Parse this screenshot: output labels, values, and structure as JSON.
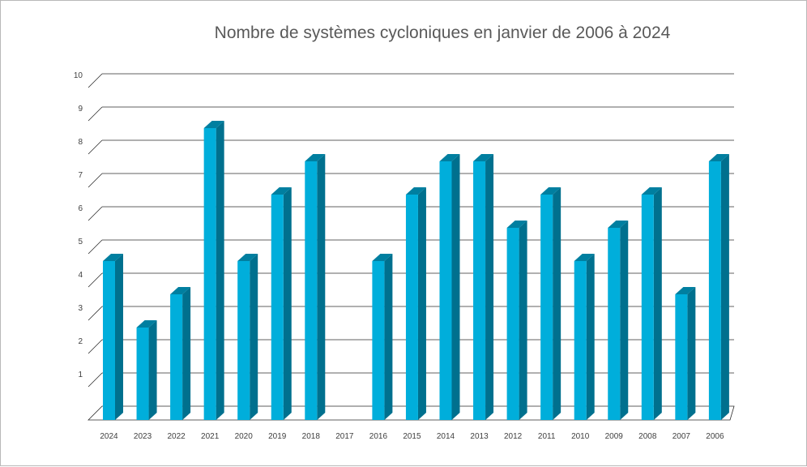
{
  "chart_data": {
    "type": "bar",
    "title": "Nombre de systèmes cycloniques en janvier de 2006 à 2024",
    "xlabel": "",
    "ylabel": "",
    "categories": [
      "2024",
      "2023",
      "2022",
      "2021",
      "2020",
      "2019",
      "2018",
      "2017",
      "2016",
      "2015",
      "2014",
      "2013",
      "2012",
      "2011",
      "2010",
      "2009",
      "2008",
      "2007",
      "2006"
    ],
    "values": [
      5,
      3,
      4,
      9,
      5,
      7,
      8,
      0,
      5,
      7,
      8,
      8,
      6,
      7,
      5,
      6,
      7,
      4,
      8
    ],
    "ylim": [
      0,
      10
    ],
    "yticks": [
      "1",
      "2",
      "3",
      "4",
      "5",
      "6",
      "7",
      "8",
      "9",
      "10"
    ],
    "grid": true,
    "legend": "none",
    "colors": {
      "bar_front": "#00aedb",
      "bar_side": "#00708e",
      "bar_top": "#007fa0",
      "grid": "#2b2b2b",
      "title": "#595959"
    }
  }
}
